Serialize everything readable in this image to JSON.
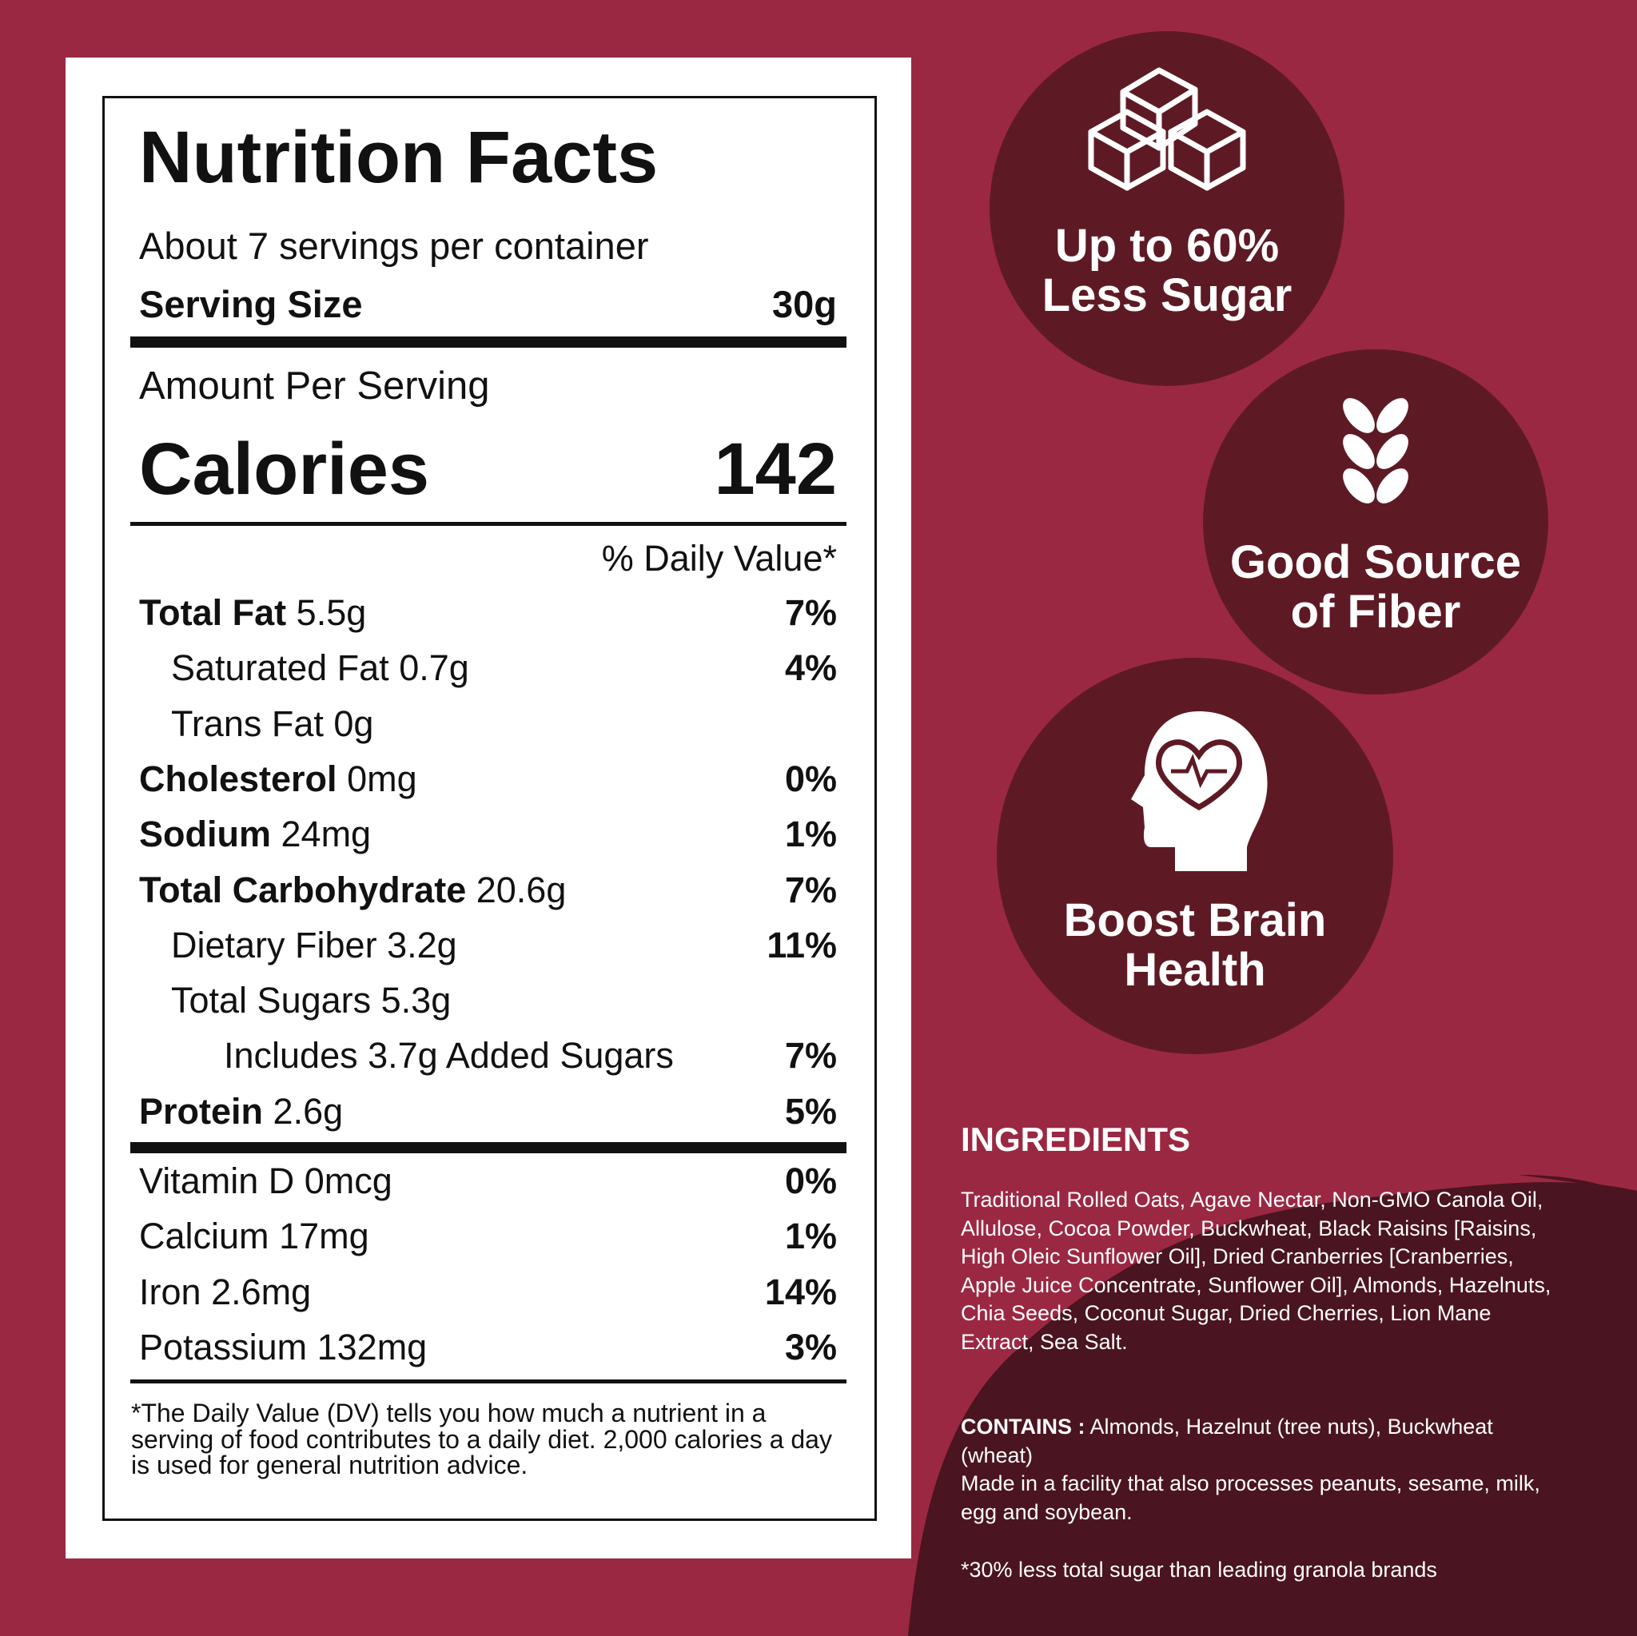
{
  "label": {
    "title": "Nutrition Facts",
    "servings": "About 7 servings per container",
    "serving_size_label": "Serving Size",
    "serving_size_value": "30g",
    "amount_per_serving": "Amount Per Serving",
    "calories_label": "Calories",
    "calories_value": "142",
    "daily_value_header": "% Daily Value*",
    "rows": [
      {
        "name": "Total Fat",
        "amount": "5.5g",
        "dv": "7%",
        "bold": true,
        "indent": 0
      },
      {
        "name": "Saturated Fat",
        "amount": "0.7g",
        "dv": "4%",
        "bold": false,
        "indent": 1
      },
      {
        "name": "Trans Fat",
        "amount": "0g",
        "bold": false,
        "indent": 1
      },
      {
        "name": "Cholesterol",
        "amount": "0mg",
        "dv": "0%",
        "bold": true,
        "indent": 0
      },
      {
        "name": "Sodium",
        "amount": "24mg",
        "dv": "1%",
        "bold": true,
        "indent": 0
      },
      {
        "name": "Total Carbohydrate",
        "amount": "20.6g",
        "dv": "7%",
        "bold": true,
        "indent": 0
      },
      {
        "name": "Dietary Fiber",
        "amount": "3.2g",
        "dv": "11%",
        "bold": false,
        "indent": 1
      },
      {
        "name": "Total Sugars",
        "amount": "5.3g",
        "bold": false,
        "indent": 1
      },
      {
        "name": "Includes 3.7g Added Sugars",
        "dv": "7%",
        "bold": false,
        "indent": 2
      },
      {
        "name": "Protein",
        "amount": "2.6g",
        "dv": "5%",
        "bold": true,
        "indent": 0
      }
    ],
    "vitamins": [
      {
        "name": "Vitamin D",
        "amount": "0mcg",
        "dv": "0%"
      },
      {
        "name": "Calcium",
        "amount": "17mg",
        "dv": "1%"
      },
      {
        "name": "Iron",
        "amount": "2.6mg",
        "dv": "14%"
      },
      {
        "name": "Potassium",
        "amount": "132mg",
        "dv": "3%"
      }
    ],
    "footnote": "*The Daily Value (DV) tells you how much a nutrient in a serving of food contributes to a daily diet. 2,000 calories a day is used for general nutrition advice."
  },
  "badges": [
    {
      "lines": [
        "Up to 60%",
        "Less Sugar"
      ]
    },
    {
      "lines": [
        "Good Source",
        "of Fiber"
      ]
    },
    {
      "lines": [
        "Boost Brain",
        "Health"
      ]
    }
  ],
  "ingredients": {
    "title": "INGREDIENTS",
    "text": "Traditional Rolled Oats, Agave Nectar, Non-GMO Canola Oil, Allulose, Cocoa Powder, Buckwheat, Black Raisins [Raisins, High Oleic Sunflower Oil], Dried Cranberries [Cranberries, Apple Juice Concentrate, Sunflower Oil], Almonds, Hazelnuts, Chia Seeds, Coconut Sugar, Dried Cherries, Lion Mane Extract, Sea Salt.",
    "contains_label": "CONTAINS :",
    "contains_text": "Almonds, Hazelnut (tree nuts), Buckwheat (wheat)",
    "facility": "Made in a facility that also processes peanuts, sesame, milk, egg and soybean.",
    "footnote": "*30% less total sugar than leading granola brands"
  }
}
